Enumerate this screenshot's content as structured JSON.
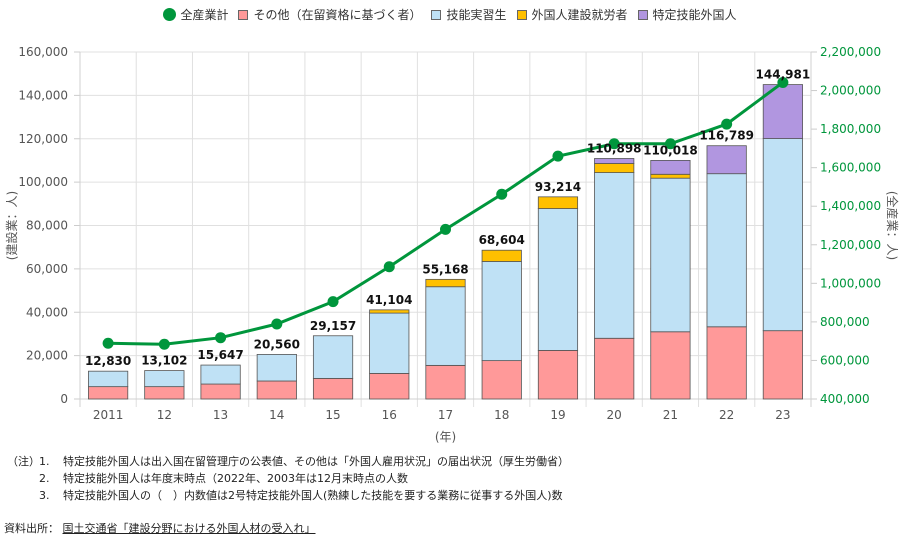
{
  "chart_data": {
    "type": "bar",
    "stacked": true,
    "categories": [
      "2011",
      "12",
      "13",
      "14",
      "15",
      "16",
      "17",
      "18",
      "19",
      "20",
      "21",
      "22",
      "23"
    ],
    "xlabel": "(年)",
    "ylabel_left": "(建設業：人)",
    "ylabel_right": "(全産業：人)",
    "ylim_left": [
      0,
      160000
    ],
    "yticks_left": [
      0,
      20000,
      40000,
      60000,
      80000,
      100000,
      120000,
      140000,
      160000
    ],
    "ytick_labels_left": [
      "0",
      "20,000",
      "40,000",
      "60,000",
      "80,000",
      "100,000",
      "120,000",
      "140,000",
      "160,000"
    ],
    "ylim_right": [
      400000,
      2200000
    ],
    "yticks_right": [
      400000,
      600000,
      800000,
      1000000,
      1200000,
      1400000,
      1600000,
      1800000,
      2000000,
      2200000
    ],
    "ytick_labels_right": [
      "400,000",
      "600,000",
      "800,000",
      "1,000,000",
      "1,200,000",
      "1,400,000",
      "1,600,000",
      "1,800,000",
      "2,000,000",
      "2,200,000"
    ],
    "grid": true,
    "legend_position": "top",
    "series": [
      {
        "name": "その他（在留資格に基づく者）",
        "type": "bar",
        "axis": "left",
        "color": "#ff9999",
        "values": [
          5700,
          5700,
          6900,
          8300,
          9500,
          11800,
          15500,
          17700,
          22400,
          28000,
          31000,
          33300,
          31500
        ]
      },
      {
        "name": "技能実習生",
        "type": "bar",
        "axis": "left",
        "color": "#bfe1f5",
        "values": [
          7130,
          7402,
          8747,
          12260,
          19657,
          27804,
          36268,
          45704,
          65414,
          76398,
          70818,
          70589,
          88581
        ]
      },
      {
        "name": "外国人建設就労者",
        "type": "bar",
        "axis": "left",
        "color": "#ffc000",
        "values": [
          0,
          0,
          0,
          0,
          0,
          1500,
          3400,
          5200,
          5400,
          4200,
          1800,
          0,
          0
        ]
      },
      {
        "name": "特定技能外国人",
        "type": "bar",
        "axis": "left",
        "color": "#b196e0",
        "values": [
          0,
          0,
          0,
          0,
          0,
          0,
          0,
          0,
          0,
          2300,
          6400,
          12900,
          24900
        ]
      },
      {
        "name": "全産業計",
        "type": "line",
        "axis": "right",
        "color": "#00963c",
        "values": [
          689000,
          684000,
          718000,
          789000,
          905000,
          1086000,
          1280000,
          1462000,
          1660000,
          1724000,
          1724000,
          1826000,
          2042000
        ]
      }
    ],
    "totals": [
      12830,
      13102,
      15647,
      20560,
      29157,
      41104,
      55168,
      68604,
      93214,
      110898,
      110018,
      116789,
      144981
    ],
    "total_labels": [
      "12,830",
      "13,102",
      "15,647",
      "20,560",
      "29,157",
      "41,104",
      "55,168",
      "68,604",
      "93,214",
      "110,898",
      "110,018",
      "116,789",
      "144,981"
    ]
  },
  "legend": [
    {
      "label": "全産業計",
      "kind": "dot",
      "color": "#00963c"
    },
    {
      "label": "その他（在留資格に基づく者）",
      "kind": "box",
      "color": "#ff9999"
    },
    {
      "label": "技能実習生",
      "kind": "box",
      "color": "#bfe1f5"
    },
    {
      "label": "外国人建設就労者",
      "kind": "box",
      "color": "#ffc000"
    },
    {
      "label": "特定技能外国人",
      "kind": "box",
      "color": "#b196e0"
    }
  ],
  "notes": {
    "prefix": "（注）",
    "items": [
      {
        "num": "1.",
        "text": "特定技能外国人は出入国在留管理庁の公表値、その他は「外国人雇用状況」の届出状況（厚生労働省）"
      },
      {
        "num": "2.",
        "text": "特定技能外国人は年度末時点（2022年、2003年は12月末時点の人数"
      },
      {
        "num": "3.",
        "text": "特定技能外国人の（　）内数値は2号特定技能外国人(熟練した技能を要する業務に従事する外国人)数"
      }
    ]
  },
  "source": {
    "label": "資料出所：",
    "link_text": "国土交通省「建設分野における外国人材の受入れ」"
  }
}
